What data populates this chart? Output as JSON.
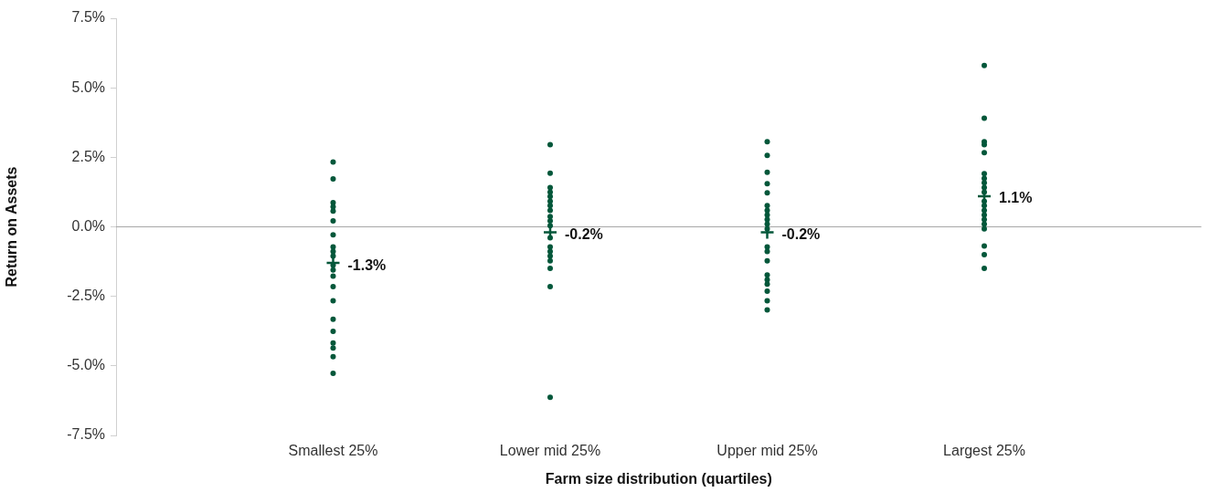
{
  "chart_data": {
    "type": "scatter",
    "xlabel": "Farm size distribution (quartiles)",
    "ylabel": "Return on Assets",
    "categories": [
      "Smallest 25%",
      "Lower mid 25%",
      "Upper mid 25%",
      "Largest 25%"
    ],
    "ylim": [
      -7.5,
      7.5
    ],
    "yticks": [
      {
        "value": -7.5,
        "label": "-7.5%"
      },
      {
        "value": -5,
        "label": "-5.0%"
      },
      {
        "value": -2.5,
        "label": "-2.5%"
      },
      {
        "value": 0,
        "label": "0.0%"
      },
      {
        "value": 2.5,
        "label": "2.5%"
      },
      {
        "value": 5,
        "label": "5.0%"
      },
      {
        "value": 7.5,
        "label": "7.5%"
      }
    ],
    "grid": false,
    "legend": false,
    "ref_lines": [
      {
        "axis": "y",
        "value": 0,
        "color": "#a8a8a8"
      }
    ],
    "series": [
      {
        "color": "#03573a",
        "marker": "circle",
        "x": [
          "Smallest 25%",
          "Smallest 25%",
          "Smallest 25%",
          "Smallest 25%",
          "Smallest 25%",
          "Smallest 25%",
          "Smallest 25%",
          "Smallest 25%",
          "Smallest 25%",
          "Smallest 25%",
          "Smallest 25%",
          "Smallest 25%",
          "Smallest 25%",
          "Smallest 25%",
          "Smallest 25%",
          "Smallest 25%",
          "Smallest 25%",
          "Smallest 25%",
          "Smallest 25%",
          "Smallest 25%",
          "Smallest 25%",
          "Lower mid 25%",
          "Lower mid 25%",
          "Lower mid 25%",
          "Lower mid 25%",
          "Lower mid 25%",
          "Lower mid 25%",
          "Lower mid 25%",
          "Lower mid 25%",
          "Lower mid 25%",
          "Lower mid 25%",
          "Lower mid 25%",
          "Lower mid 25%",
          "Lower mid 25%",
          "Lower mid 25%",
          "Lower mid 25%",
          "Lower mid 25%",
          "Lower mid 25%",
          "Lower mid 25%",
          "Lower mid 25%",
          "Upper mid 25%",
          "Upper mid 25%",
          "Upper mid 25%",
          "Upper mid 25%",
          "Upper mid 25%",
          "Upper mid 25%",
          "Upper mid 25%",
          "Upper mid 25%",
          "Upper mid 25%",
          "Upper mid 25%",
          "Upper mid 25%",
          "Upper mid 25%",
          "Upper mid 25%",
          "Upper mid 25%",
          "Upper mid 25%",
          "Upper mid 25%",
          "Upper mid 25%",
          "Upper mid 25%",
          "Upper mid 25%",
          "Upper mid 25%",
          "Largest 25%",
          "Largest 25%",
          "Largest 25%",
          "Largest 25%",
          "Largest 25%",
          "Largest 25%",
          "Largest 25%",
          "Largest 25%",
          "Largest 25%",
          "Largest 25%",
          "Largest 25%",
          "Largest 25%",
          "Largest 25%",
          "Largest 25%",
          "Largest 25%",
          "Largest 25%",
          "Largest 25%",
          "Largest 25%",
          "Largest 25%",
          "Largest 25%"
        ],
        "values": [
          2.33,
          1.72,
          0.87,
          0.72,
          0.57,
          0.21,
          -0.29,
          -0.72,
          -0.89,
          -1.05,
          -1.38,
          -1.55,
          -1.77,
          -2.15,
          -2.66,
          -3.32,
          -3.76,
          -4.18,
          -4.36,
          -4.67,
          -5.27,
          2.95,
          1.93,
          1.41,
          1.25,
          1.09,
          0.92,
          0.76,
          0.59,
          0.37,
          0.21,
          0.04,
          -0.39,
          -0.72,
          -0.89,
          -1.05,
          -1.22,
          -1.49,
          -2.15,
          -6.13,
          3.06,
          2.57,
          1.96,
          1.55,
          1.22,
          0.76,
          0.59,
          0.43,
          0.26,
          0.1,
          -0.07,
          -0.72,
          -0.89,
          -1.22,
          -1.73,
          -1.9,
          -2.06,
          -2.31,
          -2.66,
          -2.99,
          5.8,
          3.91,
          3.06,
          2.95,
          2.67,
          1.91,
          1.74,
          1.58,
          1.41,
          1.25,
          0.92,
          0.76,
          0.59,
          0.43,
          0.26,
          0.1,
          -0.07,
          -0.69,
          -1.0,
          -1.49
        ]
      },
      {
        "color": "#03573a",
        "marker": "cross",
        "x": [
          "Smallest 25%",
          "Lower mid 25%",
          "Upper mid 25%",
          "Largest 25%"
        ],
        "values": [
          -1.3,
          -0.2,
          -0.2,
          1.1
        ],
        "value_labels": [
          "-1.3%",
          "-0.2%",
          "-0.2%",
          "1.1%"
        ]
      }
    ]
  }
}
